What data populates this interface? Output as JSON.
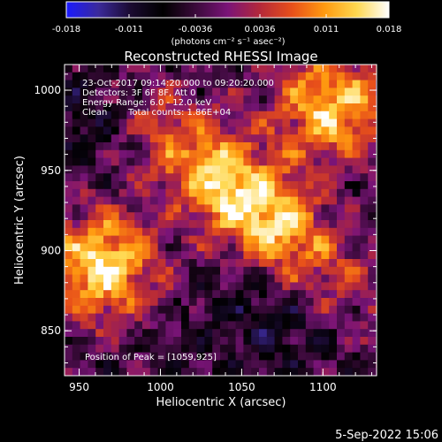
{
  "chart_data": {
    "type": "heatmap",
    "title": "Reconstructed RHESSI Image",
    "xlabel": "Heliocentric X (arcsec)",
    "ylabel": "Heliocentric Y (arcsec)",
    "xlim": [
      941,
      1133
    ],
    "ylim": [
      822,
      1016
    ],
    "x_ticks": [
      950,
      1000,
      1050,
      1100
    ],
    "y_ticks": [
      850,
      900,
      950,
      1000
    ],
    "colorbar": {
      "min": -0.018,
      "max": 0.018,
      "ticks": [
        "-0.018",
        "-0.011",
        "-0.0036",
        "0.0036",
        "0.011",
        "0.018"
      ],
      "unit_label": "(photons cm⁻² s⁻¹ asec⁻²)",
      "colors": [
        "#1a1aff",
        "#3b2a9a",
        "#1a0a30",
        "#000000",
        "#3a0a3a",
        "#7a1478",
        "#b4283a",
        "#e8501a",
        "#ff9a10",
        "#ffd850",
        "#ffffff"
      ]
    },
    "annotations": {
      "time_range": "23-Oct-2017 09:14:20.000 to 09:20:20.000",
      "detectors": "Detectors: 3F 6F 8F, Att 0",
      "energy": "Energy Range: 6.0 - 12.0 keV",
      "method": "Clean",
      "counts": "Total counts: 1.86E+04",
      "peak": "Position of Peak = [1059,925]"
    },
    "peak": {
      "x": 1059,
      "y": 925
    }
  },
  "footer": {
    "date": "5-Sep-2022 15:06"
  }
}
